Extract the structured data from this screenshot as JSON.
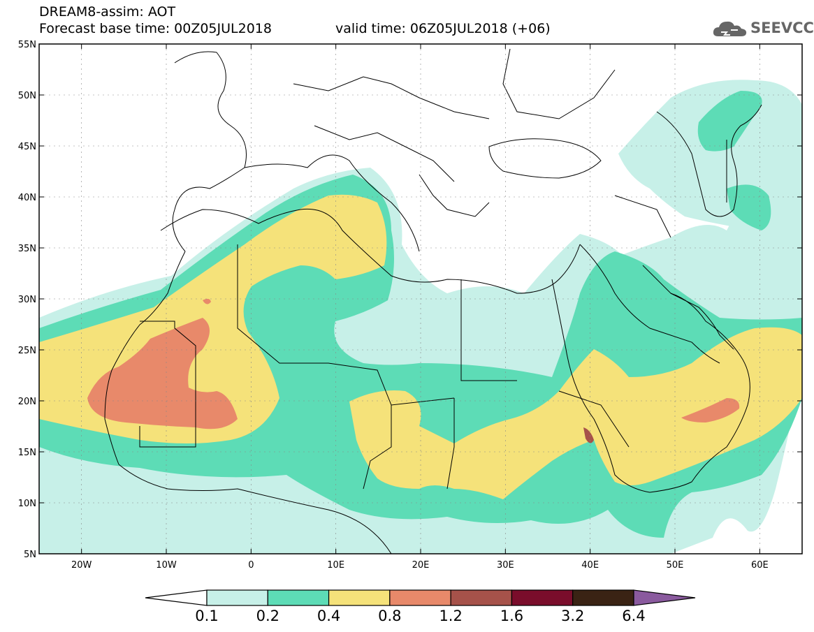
{
  "header": {
    "model_line": "DREAM8-assim: AOT",
    "base_time": "Forecast base time: 00Z05JUL2018",
    "valid_time": "valid time: 06Z05JUL2018 (+06)",
    "logo_text": "SEEVCCC",
    "logo_icon": "cloud-icon"
  },
  "map": {
    "lon_range": [
      -25,
      65
    ],
    "lat_range": [
      5,
      55
    ],
    "lat_labels": [
      "55N",
      "50N",
      "45N",
      "40N",
      "35N",
      "30N",
      "25N",
      "20N",
      "15N",
      "10N",
      "5N"
    ],
    "lon_labels": [
      "20W",
      "10W",
      "0",
      "10E",
      "20E",
      "30E",
      "40E",
      "50E",
      "60E"
    ]
  },
  "colorbar": {
    "labels": [
      "0.1",
      "0.2",
      "0.4",
      "0.8",
      "1.2",
      "1.6",
      "3.2",
      "6.4"
    ],
    "colors": [
      "#ffffff",
      "#c7f0e8",
      "#5ddcb6",
      "#f5e27a",
      "#e8896a",
      "#a6524a",
      "#7a0d2b",
      "#3a2314",
      "#8a5a9e"
    ]
  },
  "field_colors": {
    "c1": "#c7f0e8",
    "c2": "#5ddcb6",
    "c3": "#f5e27a",
    "c4": "#e8896a",
    "c5": "#a6524a"
  }
}
